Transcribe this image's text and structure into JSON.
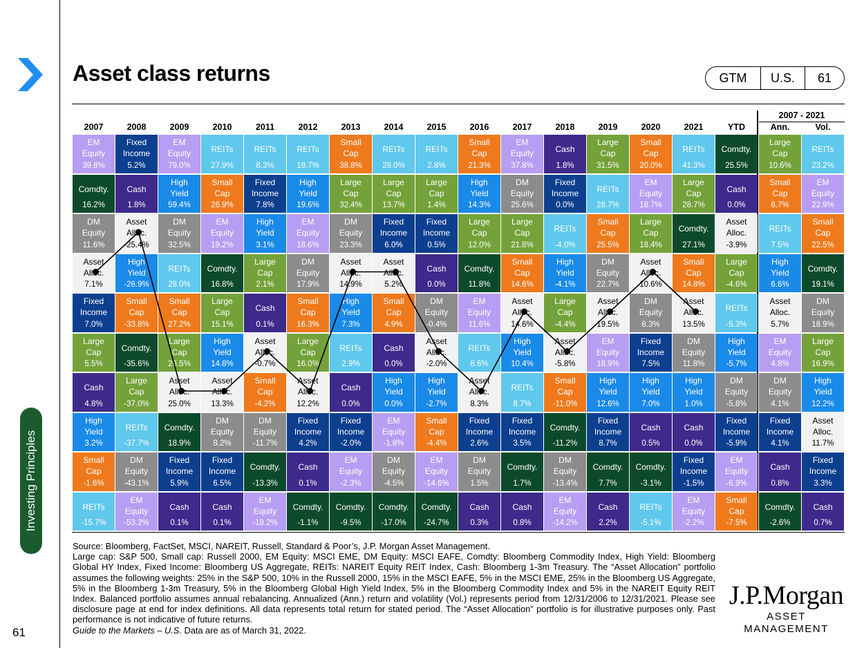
{
  "header": {
    "title": "Asset class returns",
    "badge": [
      "GTM",
      "U.S.",
      "61"
    ]
  },
  "sidebar": {
    "section_tab": "Investing Principles",
    "page_number": "61"
  },
  "colors": {
    "EM Equity": "#b79ef2",
    "Fixed Income": "#0d3f8f",
    "REITs": "#5fc8ec",
    "Small Cap": "#ee7a1d",
    "Large Cap": "#74a23a",
    "Cash": "#3d2a8a",
    "Comdty.": "#0d4a2b",
    "High Yield": "#1a8ae8",
    "DM Equity": "#8c8c8c",
    "Asset Alloc.": "#f2f2f2",
    "accent": "#1f8ef1",
    "tab": "#1a5c2e"
  },
  "table": {
    "years": [
      "2007",
      "2008",
      "2009",
      "2010",
      "2011",
      "2012",
      "2013",
      "2014",
      "2015",
      "2016",
      "2017",
      "2018",
      "2019",
      "2020",
      "2021",
      "YTD"
    ],
    "summary_title": "2007 - 2021",
    "summary_headers": [
      "Ann.",
      "Vol."
    ],
    "columns": [
      [
        [
          "EM Equity",
          "39.8%"
        ],
        [
          "Comdty.",
          "16.2%"
        ],
        [
          "DM Equity",
          "11.6%"
        ],
        [
          "Asset Alloc.",
          "7.1%"
        ],
        [
          "Fixed Income",
          "7.0%"
        ],
        [
          "Large Cap",
          "5.5%"
        ],
        [
          "Cash",
          "4.8%"
        ],
        [
          "High Yield",
          "3.2%"
        ],
        [
          "Small Cap",
          "-1.6%"
        ],
        [
          "REITs",
          "-15.7%"
        ]
      ],
      [
        [
          "Fixed Income",
          "5.2%"
        ],
        [
          "Cash",
          "1.8%"
        ],
        [
          "Asset Alloc.",
          "-25.4%"
        ],
        [
          "High Yield",
          "-26.9%"
        ],
        [
          "Small Cap",
          "-33.8%"
        ],
        [
          "Comdty.",
          "-35.6%"
        ],
        [
          "Large Cap",
          "-37.0%"
        ],
        [
          "REITs",
          "-37.7%"
        ],
        [
          "DM Equity",
          "-43.1%"
        ],
        [
          "EM Equity",
          "-53.2%"
        ]
      ],
      [
        [
          "EM Equity",
          "79.0%"
        ],
        [
          "High Yield",
          "59.4%"
        ],
        [
          "DM Equity",
          "32.5%"
        ],
        [
          "REITs",
          "28.0%"
        ],
        [
          "Small Cap",
          "27.2%"
        ],
        [
          "Large Cap",
          "26.5%"
        ],
        [
          "Asset Alloc.",
          "25.0%"
        ],
        [
          "Comdty.",
          "18.9%"
        ],
        [
          "Fixed Income",
          "5.9%"
        ],
        [
          "Cash",
          "0.1%"
        ]
      ],
      [
        [
          "REITs",
          "27.9%"
        ],
        [
          "Small Cap",
          "26.9%"
        ],
        [
          "EM Equity",
          "19.2%"
        ],
        [
          "Comdty.",
          "16.8%"
        ],
        [
          "Large Cap",
          "15.1%"
        ],
        [
          "High Yield",
          "14.8%"
        ],
        [
          "Asset Alloc.",
          "13.3%"
        ],
        [
          "DM Equity",
          "8.2%"
        ],
        [
          "Fixed Income",
          "6.5%"
        ],
        [
          "Cash",
          "0.1%"
        ]
      ],
      [
        [
          "REITs",
          "8.3%"
        ],
        [
          "Fixed Income",
          "7.8%"
        ],
        [
          "High Yield",
          "3.1%"
        ],
        [
          "Large Cap",
          "2.1%"
        ],
        [
          "Cash",
          "0.1%"
        ],
        [
          "Asset Alloc.",
          "-0.7%"
        ],
        [
          "Small Cap",
          "-4.2%"
        ],
        [
          "DM Equity",
          "-11.7%"
        ],
        [
          "Comdty.",
          "-13.3%"
        ],
        [
          "EM Equity",
          "-18.2%"
        ]
      ],
      [
        [
          "REITs",
          "19.7%"
        ],
        [
          "High Yield",
          "19.6%"
        ],
        [
          "EM Equity",
          "18.6%"
        ],
        [
          "DM Equity",
          "17.9%"
        ],
        [
          "Small Cap",
          "16.3%"
        ],
        [
          "Large Cap",
          "16.0%"
        ],
        [
          "Asset Alloc.",
          "12.2%"
        ],
        [
          "Fixed Income",
          "4.2%"
        ],
        [
          "Cash",
          "0.1%"
        ],
        [
          "Comdty.",
          "-1.1%"
        ]
      ],
      [
        [
          "Small Cap",
          "38.8%"
        ],
        [
          "Large Cap",
          "32.4%"
        ],
        [
          "DM Equity",
          "23.3%"
        ],
        [
          "Asset Alloc.",
          "14.9%"
        ],
        [
          "High Yield",
          "7.3%"
        ],
        [
          "REITs",
          "2.9%"
        ],
        [
          "Cash",
          "0.0%"
        ],
        [
          "Fixed Income",
          "-2.0%"
        ],
        [
          "EM Equity",
          "-2.3%"
        ],
        [
          "Comdty.",
          "-9.5%"
        ]
      ],
      [
        [
          "REITs",
          "28.0%"
        ],
        [
          "Large Cap",
          "13.7%"
        ],
        [
          "Fixed Income",
          "6.0%"
        ],
        [
          "Asset Alloc.",
          "5.2%"
        ],
        [
          "Small Cap",
          "4.9%"
        ],
        [
          "Cash",
          "0.0%"
        ],
        [
          "High Yield",
          "0.0%"
        ],
        [
          "EM Equity",
          "-1.8%"
        ],
        [
          "DM Equity",
          "-4.5%"
        ],
        [
          "Comdty.",
          "-17.0%"
        ]
      ],
      [
        [
          "REITs",
          "2.8%"
        ],
        [
          "Large Cap",
          "1.4%"
        ],
        [
          "Fixed Income",
          "0.5%"
        ],
        [
          "Cash",
          "0.0%"
        ],
        [
          "DM Equity",
          "-0.4%"
        ],
        [
          "Asset Alloc.",
          "-2.0%"
        ],
        [
          "High Yield",
          "-2.7%"
        ],
        [
          "Small Cap",
          "-4.4%"
        ],
        [
          "EM Equity",
          "-14.6%"
        ],
        [
          "Comdty.",
          "-24.7%"
        ]
      ],
      [
        [
          "Small Cap",
          "21.3%"
        ],
        [
          "High Yield",
          "14.3%"
        ],
        [
          "Large Cap",
          "12.0%"
        ],
        [
          "Comdty.",
          "11.8%"
        ],
        [
          "EM Equity",
          "11.6%"
        ],
        [
          "REITs",
          "8.6%"
        ],
        [
          "Asset Alloc.",
          "8.3%"
        ],
        [
          "Fixed Income",
          "2.6%"
        ],
        [
          "DM Equity",
          "1.5%"
        ],
        [
          "Cash",
          "0.3%"
        ]
      ],
      [
        [
          "EM Equity",
          "37.8%"
        ],
        [
          "DM Equity",
          "25.6%"
        ],
        [
          "Large Cap",
          "21.8%"
        ],
        [
          "Small Cap",
          "14.6%"
        ],
        [
          "Asset Alloc.",
          "14.6%"
        ],
        [
          "High Yield",
          "10.4%"
        ],
        [
          "REITs",
          "8.7%"
        ],
        [
          "Fixed Income",
          "3.5%"
        ],
        [
          "Comdty.",
          "1.7%"
        ],
        [
          "Cash",
          "0.8%"
        ]
      ],
      [
        [
          "Cash",
          "1.8%"
        ],
        [
          "Fixed Income",
          "0.0%"
        ],
        [
          "REITs",
          "-4.0%"
        ],
        [
          "High Yield",
          "-4.1%"
        ],
        [
          "Large Cap",
          "-4.4%"
        ],
        [
          "Asset Alloc.",
          "-5.8%"
        ],
        [
          "Small Cap",
          "-11.0%"
        ],
        [
          "Comdty.",
          "-11.2%"
        ],
        [
          "DM Equity",
          "-13.4%"
        ],
        [
          "EM Equity",
          "-14.2%"
        ]
      ],
      [
        [
          "Large Cap",
          "31.5%"
        ],
        [
          "REITs",
          "28.7%"
        ],
        [
          "Small Cap",
          "25.5%"
        ],
        [
          "DM Equity",
          "22.7%"
        ],
        [
          "Asset Alloc.",
          "19.5%"
        ],
        [
          "EM Equity",
          "18.9%"
        ],
        [
          "High Yield",
          "12.6%"
        ],
        [
          "Fixed Income",
          "8.7%"
        ],
        [
          "Comdty.",
          "7.7%"
        ],
        [
          "Cash",
          "2.2%"
        ]
      ],
      [
        [
          "Small Cap",
          "20.0%"
        ],
        [
          "EM Equity",
          "18.7%"
        ],
        [
          "Large Cap",
          "18.4%"
        ],
        [
          "Asset Alloc.",
          "10.6%"
        ],
        [
          "DM Equity",
          "8.3%"
        ],
        [
          "Fixed Income",
          "7.5%"
        ],
        [
          "High Yield",
          "7.0%"
        ],
        [
          "Cash",
          "0.5%"
        ],
        [
          "Comdty.",
          "-3.1%"
        ],
        [
          "REITs",
          "-5.1%"
        ]
      ],
      [
        [
          "REITs",
          "41.3%"
        ],
        [
          "Large Cap",
          "28.7%"
        ],
        [
          "Comdty.",
          "27.1%"
        ],
        [
          "Small Cap",
          "14.8%"
        ],
        [
          "Asset Alloc.",
          "13.5%"
        ],
        [
          "DM Equity",
          "11.8%"
        ],
        [
          "High Yield",
          "1.0%"
        ],
        [
          "Cash",
          "0.0%"
        ],
        [
          "Fixed Income",
          "-1.5%"
        ],
        [
          "EM Equity",
          "-2.2%"
        ]
      ],
      [
        [
          "Comdty.",
          "25.5%"
        ],
        [
          "Cash",
          "0.0%"
        ],
        [
          "Asset Alloc.",
          "-3.9%"
        ],
        [
          "Large Cap",
          "-4.6%"
        ],
        [
          "REITs",
          "-5.3%"
        ],
        [
          "High Yield",
          "-5.7%"
        ],
        [
          "DM Equity",
          "-5.8%"
        ],
        [
          "Fixed Income",
          "-5.9%"
        ],
        [
          "EM Equity",
          "-6.9%"
        ],
        [
          "Small Cap",
          "-7.5%"
        ]
      ]
    ],
    "summary_columns": [
      [
        [
          "Large Cap",
          "10.6%"
        ],
        [
          "Small Cap",
          "8.7%"
        ],
        [
          "REITs",
          "7.5%"
        ],
        [
          "High Yield",
          "6.6%"
        ],
        [
          "Asset Alloc.",
          "5.7%"
        ],
        [
          "EM Equity",
          "4.8%"
        ],
        [
          "DM Equity",
          "4.1%"
        ],
        [
          "Fixed Income",
          "4.1%"
        ],
        [
          "Cash",
          "0.8%"
        ],
        [
          "Comdty.",
          "-2.6%"
        ]
      ],
      [
        [
          "REITs",
          "23.2%"
        ],
        [
          "EM Equity",
          "22.9%"
        ],
        [
          "Small Cap",
          "22.5%"
        ],
        [
          "Comdty.",
          "19.1%"
        ],
        [
          "DM Equity",
          "18.9%"
        ],
        [
          "Large Cap",
          "16.9%"
        ],
        [
          "High Yield",
          "12.2%"
        ],
        [
          "Asset Alloc.",
          "11.7%"
        ],
        [
          "Fixed Income",
          "3.3%"
        ],
        [
          "Cash",
          "0.7%"
        ]
      ]
    ]
  },
  "footnote": {
    "source": "Source: Bloomberg, FactSet, MSCI, NAREIT, Russell, Standard & Poor’s, J.P. Morgan Asset Management.",
    "body": "Large cap: S&P 500, Small cap: Russell 2000, EM Equity: MSCI EME, DM Equity: MSCI EAFE, Comdty: Bloomberg Commodity Index, High Yield: Bloomberg Global HY Index, Fixed Income: Bloomberg US Aggregate, REITs: NAREIT Equity REIT Index, Cash: Bloomberg 1-3m Treasury. The “Asset Allocation” portfolio assumes the following weights: 25% in the S&P 500, 10% in the Russell 2000, 15% in the MSCI EAFE, 5% in the MSCI EME, 25% in the Bloomberg US Aggregate, 5% in the Bloomberg 1-3m Treasury, 5% in the Bloomberg Global High Yield Index, 5% in the Bloomberg Commodity Index and 5% in the NAREIT Equity REIT Index. Balanced portfolio assumes annual rebalancing. Annualized (Ann.) return and volatility (Vol.) represents period from 12/31/2006 to 12/31/2021. Please see disclosure page at end for index definitions. All data represents total return for stated period. The “Asset Allocation” portfolio is for illustrative purposes only. Past performance is not indicative of future returns.",
    "guide_title": "Guide to the Markets – U.S.",
    "as_of": " Data are as of March 31, 2022."
  },
  "logo": {
    "name": "J.P.Morgan",
    "sub": "ASSET MANAGEMENT"
  }
}
